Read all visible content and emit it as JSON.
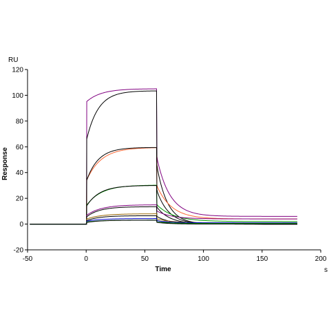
{
  "chart_data": {
    "type": "line",
    "title": "",
    "xlabel": "Time",
    "ylabel": "Response",
    "x_unit": "s",
    "y_unit": "RU",
    "xlim": [
      -50,
      200
    ],
    "ylim": [
      -20,
      120
    ],
    "x_ticks": [
      "-50",
      "0",
      "50",
      "100",
      "150",
      "200"
    ],
    "y_ticks": [
      "-20",
      "0",
      "20",
      "40",
      "60",
      "80",
      "100",
      "120"
    ],
    "grid": false,
    "legend": "none",
    "series": [
      {
        "color": "#800080",
        "start": 0,
        "end": 60,
        "max": 103.5,
        "plateau_fraction": 0.9,
        "k_on": 0.08,
        "k_off": 0.09,
        "residual": 6,
        "spike": 1.6
      },
      {
        "color": "#000000",
        "start": 0,
        "end": 60,
        "max": 103.5,
        "plateau_fraction": 0.62,
        "k_on": 0.1,
        "k_off": 0.11,
        "residual": 0,
        "spike": 0
      },
      {
        "color": "#ff6633",
        "start": 0,
        "end": 60,
        "max": 58.5,
        "plateau_fraction": 0.55,
        "k_on": 0.08,
        "k_off": 0.08,
        "residual": 4,
        "spike": 1.0
      },
      {
        "color": "#000000",
        "start": 0,
        "end": 60,
        "max": 59.5,
        "plateau_fraction": 0.55,
        "k_on": 0.1,
        "k_off": 0.1,
        "residual": 0,
        "spike": 0
      },
      {
        "color": "#009900",
        "start": 0,
        "end": 60,
        "max": 29.5,
        "plateau_fraction": 0.45,
        "k_on": 0.08,
        "k_off": 0.07,
        "residual": 2,
        "spike": 0.8
      },
      {
        "color": "#000000",
        "start": 0,
        "end": 60,
        "max": 30.0,
        "plateau_fraction": 0.45,
        "k_on": 0.09,
        "k_off": 0.09,
        "residual": 0,
        "spike": 0
      },
      {
        "color": "#800080",
        "start": 0,
        "end": 60,
        "max": 14.0,
        "plateau_fraction": 0.4,
        "k_on": 0.08,
        "k_off": 0.08,
        "residual": 4,
        "spike": 1.0
      },
      {
        "color": "#000000",
        "start": 0,
        "end": 60,
        "max": 13.5,
        "plateau_fraction": 0.4,
        "k_on": 0.09,
        "k_off": 0.09,
        "residual": 0,
        "spike": 0
      },
      {
        "color": "#996600",
        "start": 0,
        "end": 60,
        "max": 7.0,
        "plateau_fraction": 0.4,
        "k_on": 0.08,
        "k_off": 0.08,
        "residual": 1,
        "spike": 1.0
      },
      {
        "color": "#000000",
        "start": 0,
        "end": 60,
        "max": 6.5,
        "plateau_fraction": 0.4,
        "k_on": 0.09,
        "k_off": 0.09,
        "residual": 0,
        "spike": 0
      },
      {
        "color": "#0000cc",
        "start": 0,
        "end": 60,
        "max": 3.5,
        "plateau_fraction": 0.4,
        "k_on": 0.08,
        "k_off": 0.08,
        "residual": 1,
        "spike": 0.8
      },
      {
        "color": "#009900",
        "start": 0,
        "end": 60,
        "max": 2.5,
        "plateau_fraction": 0.4,
        "k_on": 0.08,
        "k_off": 0.08,
        "residual": 0.5,
        "spike": 0.6
      },
      {
        "color": "#000000",
        "start": 0,
        "end": 60,
        "max": 3.0,
        "plateau_fraction": 0.4,
        "k_on": 0.09,
        "k_off": 0.09,
        "residual": 0,
        "spike": 0
      }
    ]
  }
}
